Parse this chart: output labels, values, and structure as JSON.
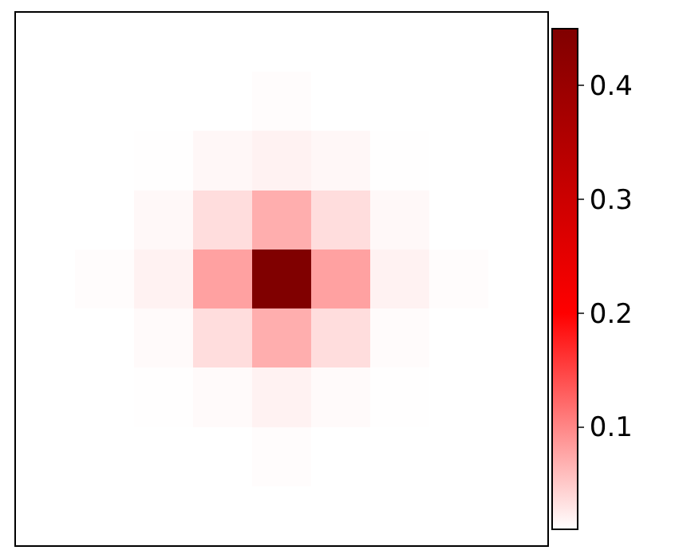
{
  "chart_data": {
    "type": "heatmap",
    "categories": [
      null,
      null,
      null,
      null,
      null,
      null,
      null,
      null,
      null
    ],
    "y_categories": [
      null,
      null,
      null,
      null,
      null,
      null,
      null,
      null,
      null
    ],
    "cells": [
      [
        0.01,
        0.01,
        0.01,
        0.01,
        0.01,
        0.01,
        0.01,
        0.01,
        0.01
      ],
      [
        0.01,
        0.01,
        0.01,
        0.01,
        0.012,
        0.01,
        0.01,
        0.01,
        0.01
      ],
      [
        0.01,
        0.01,
        0.011,
        0.016,
        0.02,
        0.016,
        0.011,
        0.01,
        0.01
      ],
      [
        0.01,
        0.01,
        0.015,
        0.035,
        0.07,
        0.035,
        0.015,
        0.01,
        0.01
      ],
      [
        0.01,
        0.012,
        0.02,
        0.08,
        0.45,
        0.08,
        0.02,
        0.012,
        0.01
      ],
      [
        0.01,
        0.01,
        0.014,
        0.035,
        0.07,
        0.035,
        0.013,
        0.01,
        0.01
      ],
      [
        0.01,
        0.01,
        0.011,
        0.014,
        0.02,
        0.014,
        0.011,
        0.01,
        0.01
      ],
      [
        0.01,
        0.01,
        0.01,
        0.01,
        0.012,
        0.01,
        0.01,
        0.01,
        0.01
      ],
      [
        0.01,
        0.01,
        0.01,
        0.01,
        0.01,
        0.01,
        0.01,
        0.01,
        0.01
      ]
    ],
    "colors": [
      "#ffffff",
      "#ff0000",
      "#800000"
    ],
    "clim": [
      0.01,
      0.45
    ],
    "cticks": [
      0.1,
      0.2,
      0.3,
      0.4
    ]
  }
}
